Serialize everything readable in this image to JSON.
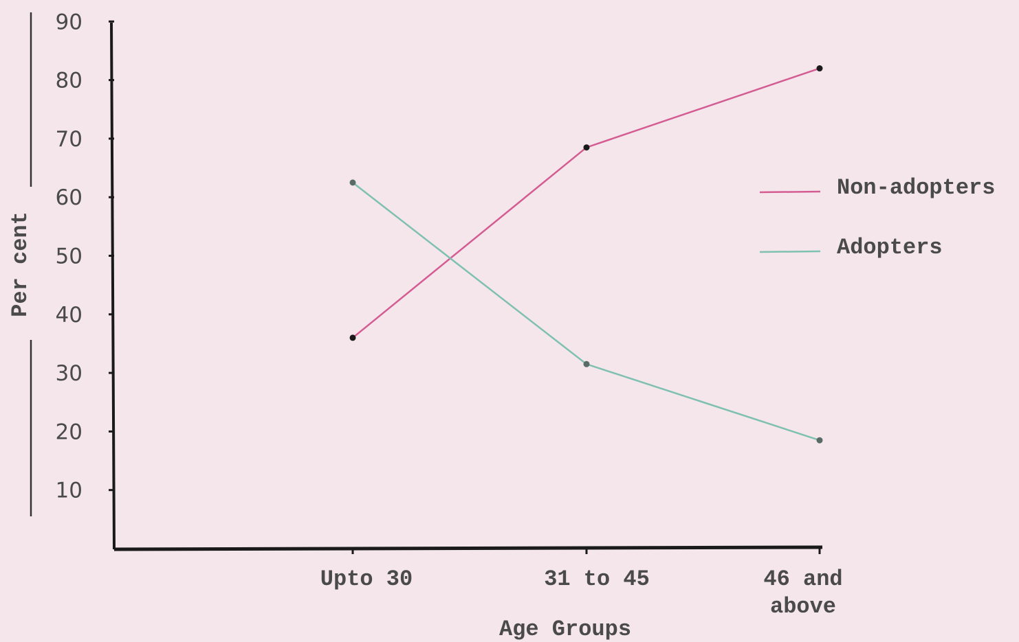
{
  "chart_data": {
    "type": "line",
    "title": "",
    "xlabel": "Age Groups",
    "ylabel": "Per cent",
    "ylim": [
      0,
      90
    ],
    "yticks": [
      10,
      20,
      30,
      40,
      50,
      60,
      70,
      80,
      90
    ],
    "categories": [
      {
        "lines": [
          "Upto 30"
        ]
      },
      {
        "lines": [
          "31 to 45"
        ]
      },
      {
        "lines": [
          "46 and",
          "above"
        ]
      }
    ],
    "series": [
      {
        "name": "Non-adopters",
        "color": "#d45c93",
        "values": [
          36,
          68.5,
          82
        ]
      },
      {
        "name": "Adopters",
        "color": "#7fc0b0",
        "values": [
          62.5,
          31.5,
          18.5
        ]
      }
    ],
    "legend_position": "right",
    "grid": false
  }
}
